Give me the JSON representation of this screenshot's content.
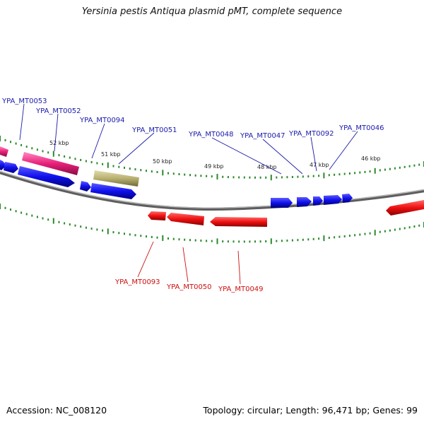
{
  "title": "Yersinia pestis Antiqua plasmid pMT, complete sequence",
  "footer": {
    "accession": "Accession: NC_008120",
    "summary": "Topology: circular; Length: 96,471 bp; Genes: 99"
  },
  "colors": {
    "forward_gene": "#1a1aee",
    "reverse_gene": "#e81010",
    "pink_gene": "#e8207a",
    "olive_gene": "#b8b070",
    "backbone": "#8a8a8a",
    "ticks": "#2a8a2a",
    "forward_label": "#1a1aaa",
    "reverse_label": "#cc1010"
  },
  "scale_labels": [
    "52 kbp",
    "51 kbp",
    "50 kbp",
    "49 kbp",
    "48 kbp",
    "47 kbp",
    "46 kbp"
  ],
  "forward_labels": [
    "YPA_MT0053",
    "YPA_MT0052",
    "YPA_MT0094",
    "YPA_MT0051",
    "YPA_MT0048",
    "YPA_MT0047",
    "YPA_MT0092",
    "YPA_MT0046"
  ],
  "reverse_labels": [
    "YPA_MT0093",
    "YPA_MT0050",
    "YPA_MT0049"
  ]
}
